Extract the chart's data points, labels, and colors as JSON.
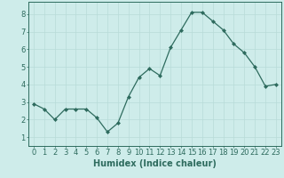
{
  "x": [
    0,
    1,
    2,
    3,
    4,
    5,
    6,
    7,
    8,
    9,
    10,
    11,
    12,
    13,
    14,
    15,
    16,
    17,
    18,
    19,
    20,
    21,
    22,
    23
  ],
  "y": [
    2.9,
    2.6,
    2.0,
    2.6,
    2.6,
    2.6,
    2.1,
    1.3,
    1.8,
    3.3,
    4.4,
    4.9,
    4.5,
    6.1,
    7.1,
    8.1,
    8.1,
    7.6,
    7.1,
    6.3,
    5.8,
    5.0,
    3.9,
    4.0
  ],
  "line_color": "#2e6b5e",
  "marker": "D",
  "marker_size": 2.0,
  "bg_color": "#ceecea",
  "grid_color": "#b8dbd8",
  "xlabel": "Humidex (Indice chaleur)",
  "xlim": [
    -0.5,
    23.5
  ],
  "ylim": [
    0.5,
    8.7
  ],
  "yticks": [
    1,
    2,
    3,
    4,
    5,
    6,
    7,
    8
  ],
  "xticks": [
    0,
    1,
    2,
    3,
    4,
    5,
    6,
    7,
    8,
    9,
    10,
    11,
    12,
    13,
    14,
    15,
    16,
    17,
    18,
    19,
    20,
    21,
    22,
    23
  ],
  "tick_color": "#2e6b5e",
  "label_fontsize": 7.0,
  "tick_fontsize": 6.0
}
